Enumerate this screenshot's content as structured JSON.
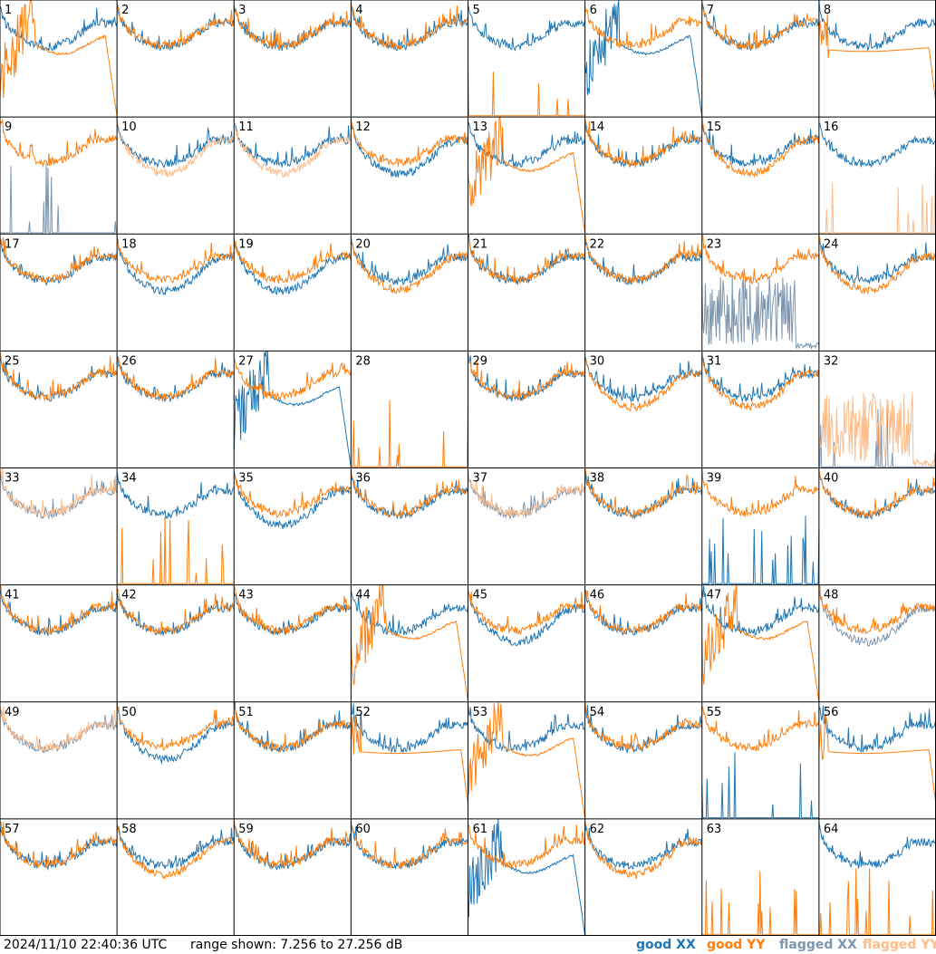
{
  "timestamp": "2024/11/10 22:40:36 UTC",
  "range_text": "range shown: 7.256 to 27.256 dB",
  "legend": [
    {
      "label": "good XX",
      "color": "#1f77b4"
    },
    {
      "label": "good YY",
      "color": "#ff7f0e"
    },
    {
      "label": "flagged XX",
      "color": "#7d96b0"
    },
    {
      "label": "flagged YY",
      "color": "#ffbb88"
    }
  ],
  "chart_data": {
    "type": "line",
    "layout": "8x8 small multiples",
    "ylim": [
      7.256,
      27.256
    ],
    "yunit": "dB",
    "grid": false,
    "colors": {
      "good_xx": "#1f77b4",
      "good_yy": "#ff7f0e",
      "flagged_xx": "#7d96b0",
      "flagged_yy": "#ffbb88"
    },
    "panel_labels": [
      "1",
      "2",
      "3",
      "4",
      "5",
      "6",
      "7",
      "8",
      "9",
      "10",
      "11",
      "12",
      "13",
      "14",
      "15",
      "16",
      "17",
      "18",
      "19",
      "20",
      "21",
      "22",
      "23",
      "24",
      "25",
      "26",
      "27",
      "28",
      "29",
      "30",
      "31",
      "32",
      "33",
      "34",
      "35",
      "36",
      "37",
      "38",
      "39",
      "40",
      "41",
      "42",
      "43",
      "44",
      "45",
      "46",
      "47",
      "48",
      "49",
      "50",
      "51",
      "52",
      "53",
      "54",
      "55",
      "56",
      "57",
      "58",
      "59",
      "60",
      "61",
      "62",
      "63",
      "64"
    ],
    "panels": [
      {
        "id": 1,
        "xx": "normal",
        "yy": "dip",
        "flag_x": false,
        "flag_y": false
      },
      {
        "id": 2,
        "xx": "normal",
        "yy": "normal",
        "flag_x": false,
        "flag_y": false
      },
      {
        "id": 3,
        "xx": "normal",
        "yy": "normal",
        "flag_x": false,
        "flag_y": false
      },
      {
        "id": 4,
        "xx": "normal",
        "yy": "normal",
        "flag_x": false,
        "flag_y": false
      },
      {
        "id": 5,
        "xx": "normal",
        "yy": "dead",
        "flag_x": false,
        "flag_y": false
      },
      {
        "id": 6,
        "xx": "dip",
        "yy": "normal",
        "flag_x": false,
        "flag_y": false
      },
      {
        "id": 7,
        "xx": "normal",
        "yy": "normal",
        "flag_x": false,
        "flag_y": false
      },
      {
        "id": 8,
        "xx": "normal",
        "yy": "smooth",
        "flag_x": false,
        "flag_y": false
      },
      {
        "id": 9,
        "xx": "dead",
        "yy": "normal",
        "flag_x": true,
        "flag_y": false
      },
      {
        "id": 10,
        "xx": "normal",
        "yy": "low",
        "flag_x": false,
        "flag_y": true
      },
      {
        "id": 11,
        "xx": "normal",
        "yy": "low",
        "flag_x": false,
        "flag_y": true
      },
      {
        "id": 12,
        "xx": "low",
        "yy": "normal",
        "flag_x": false,
        "flag_y": false
      },
      {
        "id": 13,
        "xx": "normal",
        "yy": "dip",
        "flag_x": false,
        "flag_y": false
      },
      {
        "id": 14,
        "xx": "normal",
        "yy": "normal",
        "flag_x": false,
        "flag_y": false
      },
      {
        "id": 15,
        "xx": "normal",
        "yy": "low",
        "flag_x": false,
        "flag_y": false
      },
      {
        "id": 16,
        "xx": "normal",
        "yy": "dead",
        "flag_x": false,
        "flag_y": true
      },
      {
        "id": 17,
        "xx": "normal",
        "yy": "normal",
        "flag_x": false,
        "flag_y": false
      },
      {
        "id": 18,
        "xx": "low",
        "yy": "normal",
        "flag_x": false,
        "flag_y": false
      },
      {
        "id": 19,
        "xx": "low",
        "yy": "normal",
        "flag_x": false,
        "flag_y": false
      },
      {
        "id": 20,
        "xx": "normal",
        "yy": "low",
        "flag_x": false,
        "flag_y": false
      },
      {
        "id": 21,
        "xx": "normal",
        "yy": "normal",
        "flag_x": false,
        "flag_y": false
      },
      {
        "id": 22,
        "xx": "normal",
        "yy": "normal",
        "flag_x": false,
        "flag_y": false
      },
      {
        "id": 23,
        "xx": "noisy",
        "yy": "normal",
        "flag_x": true,
        "flag_y": false
      },
      {
        "id": 24,
        "xx": "normal",
        "yy": "low",
        "flag_x": false,
        "flag_y": false
      },
      {
        "id": 25,
        "xx": "normal",
        "yy": "normal",
        "flag_x": false,
        "flag_y": false
      },
      {
        "id": 26,
        "xx": "normal",
        "yy": "normal",
        "flag_x": false,
        "flag_y": false
      },
      {
        "id": 27,
        "xx": "dip",
        "yy": "normal",
        "flag_x": false,
        "flag_y": false
      },
      {
        "id": 28,
        "xx": "none",
        "yy": "dead",
        "flag_x": false,
        "flag_y": false
      },
      {
        "id": 29,
        "xx": "normal",
        "yy": "normal",
        "flag_x": false,
        "flag_y": false
      },
      {
        "id": 30,
        "xx": "normal",
        "yy": "low",
        "flag_x": false,
        "flag_y": false
      },
      {
        "id": 31,
        "xx": "normal",
        "yy": "low",
        "flag_x": false,
        "flag_y": false
      },
      {
        "id": 32,
        "xx": "dead",
        "yy": "noisy",
        "flag_x": true,
        "flag_y": true
      },
      {
        "id": 33,
        "xx": "normal",
        "yy": "normal",
        "flag_x": true,
        "flag_y": true
      },
      {
        "id": 34,
        "xx": "normal",
        "yy": "dead",
        "flag_x": false,
        "flag_y": false
      },
      {
        "id": 35,
        "xx": "low",
        "yy": "normal",
        "flag_x": false,
        "flag_y": false
      },
      {
        "id": 36,
        "xx": "normal",
        "yy": "normal",
        "flag_x": false,
        "flag_y": false
      },
      {
        "id": 37,
        "xx": "normal",
        "yy": "normal",
        "flag_x": true,
        "flag_y": true
      },
      {
        "id": 38,
        "xx": "normal",
        "yy": "normal",
        "flag_x": false,
        "flag_y": false
      },
      {
        "id": 39,
        "xx": "dead",
        "yy": "normal",
        "flag_x": false,
        "flag_y": false
      },
      {
        "id": 40,
        "xx": "normal",
        "yy": "normal",
        "flag_x": false,
        "flag_y": false
      },
      {
        "id": 41,
        "xx": "normal",
        "yy": "normal",
        "flag_x": false,
        "flag_y": false
      },
      {
        "id": 42,
        "xx": "normal",
        "yy": "normal",
        "flag_x": false,
        "flag_y": false
      },
      {
        "id": 43,
        "xx": "normal",
        "yy": "normal",
        "flag_x": false,
        "flag_y": false
      },
      {
        "id": 44,
        "xx": "normal",
        "yy": "dip",
        "flag_x": false,
        "flag_y": false
      },
      {
        "id": 45,
        "xx": "low",
        "yy": "normal",
        "flag_x": false,
        "flag_y": false
      },
      {
        "id": 46,
        "xx": "normal",
        "yy": "normal",
        "flag_x": false,
        "flag_y": false
      },
      {
        "id": 47,
        "xx": "normal",
        "yy": "dip",
        "flag_x": false,
        "flag_y": false
      },
      {
        "id": 48,
        "xx": "low",
        "yy": "normal",
        "flag_x": true,
        "flag_y": false
      },
      {
        "id": 49,
        "xx": "normal",
        "yy": "normal",
        "flag_x": true,
        "flag_y": true
      },
      {
        "id": 50,
        "xx": "low",
        "yy": "normal",
        "flag_x": false,
        "flag_y": false
      },
      {
        "id": 51,
        "xx": "normal",
        "yy": "normal",
        "flag_x": false,
        "flag_y": false
      },
      {
        "id": 52,
        "xx": "normal",
        "yy": "smooth",
        "flag_x": false,
        "flag_y": false
      },
      {
        "id": 53,
        "xx": "normal",
        "yy": "dip",
        "flag_x": false,
        "flag_y": false
      },
      {
        "id": 54,
        "xx": "normal",
        "yy": "normal",
        "flag_x": false,
        "flag_y": false
      },
      {
        "id": 55,
        "xx": "dead",
        "yy": "normal",
        "flag_x": false,
        "flag_y": false
      },
      {
        "id": 56,
        "xx": "normal",
        "yy": "smooth",
        "flag_x": false,
        "flag_y": false
      },
      {
        "id": 57,
        "xx": "normal",
        "yy": "normal",
        "flag_x": false,
        "flag_y": false
      },
      {
        "id": 58,
        "xx": "normal",
        "yy": "low",
        "flag_x": false,
        "flag_y": false
      },
      {
        "id": 59,
        "xx": "normal",
        "yy": "normal",
        "flag_x": false,
        "flag_y": false
      },
      {
        "id": 60,
        "xx": "normal",
        "yy": "normal",
        "flag_x": false,
        "flag_y": false
      },
      {
        "id": 61,
        "xx": "dip",
        "yy": "normal",
        "flag_x": false,
        "flag_y": false
      },
      {
        "id": 62,
        "xx": "normal",
        "yy": "low",
        "flag_x": false,
        "flag_y": false
      },
      {
        "id": 63,
        "xx": "none",
        "yy": "dead",
        "flag_x": false,
        "flag_y": false
      },
      {
        "id": 64,
        "xx": "normal",
        "yy": "dead",
        "flag_x": false,
        "flag_y": false
      }
    ]
  }
}
